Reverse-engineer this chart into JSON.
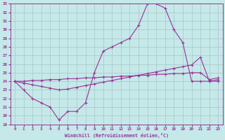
{
  "xlabel": "Windchill (Refroidissement éolien,°C)",
  "ylabel": "",
  "bg_color": "#c5e8e8",
  "line_color": "#993399",
  "grid_color": "#aacccc",
  "xlim": [
    -0.5,
    23.5
  ],
  "ylim": [
    19,
    33
  ],
  "xticks": [
    0,
    1,
    2,
    3,
    4,
    5,
    6,
    7,
    8,
    9,
    10,
    11,
    12,
    13,
    14,
    15,
    16,
    17,
    18,
    19,
    20,
    21,
    22,
    23
  ],
  "yticks": [
    19,
    20,
    21,
    22,
    23,
    24,
    25,
    26,
    27,
    28,
    29,
    30,
    31,
    32,
    33
  ],
  "line1_x": [
    0,
    1,
    2,
    3,
    4,
    5,
    6,
    7,
    8,
    9,
    10,
    11,
    12,
    13,
    14,
    15,
    16,
    17,
    18,
    19,
    20,
    21,
    22,
    23
  ],
  "line1_y": [
    24,
    23,
    22,
    21.5,
    21,
    19.5,
    20.5,
    20.5,
    21.5,
    25,
    27.5,
    28,
    28.5,
    29,
    30.5,
    33,
    33,
    32.5,
    30,
    28.5,
    24,
    24,
    24,
    24
  ],
  "line2_x": [
    0,
    1,
    2,
    3,
    4,
    5,
    6,
    7,
    8,
    9,
    10,
    11,
    12,
    13,
    14,
    15,
    16,
    17,
    18,
    19,
    20,
    21,
    22,
    23
  ],
  "line2_y": [
    24.0,
    23.8,
    23.6,
    23.4,
    23.2,
    23.0,
    23.1,
    23.3,
    23.5,
    23.7,
    23.9,
    24.1,
    24.3,
    24.5,
    24.7,
    24.9,
    25.1,
    25.3,
    25.5,
    25.7,
    25.9,
    26.8,
    24.0,
    24.2
  ],
  "line3_x": [
    0,
    1,
    2,
    3,
    4,
    5,
    6,
    7,
    8,
    9,
    10,
    11,
    12,
    13,
    14,
    15,
    16,
    17,
    18,
    19,
    20,
    21,
    22,
    23
  ],
  "line3_y": [
    24.0,
    24.0,
    24.1,
    24.1,
    24.2,
    24.2,
    24.3,
    24.3,
    24.4,
    24.4,
    24.5,
    24.5,
    24.6,
    24.6,
    24.7,
    24.7,
    24.8,
    24.8,
    24.9,
    24.9,
    25.0,
    25.0,
    24.2,
    24.4
  ]
}
